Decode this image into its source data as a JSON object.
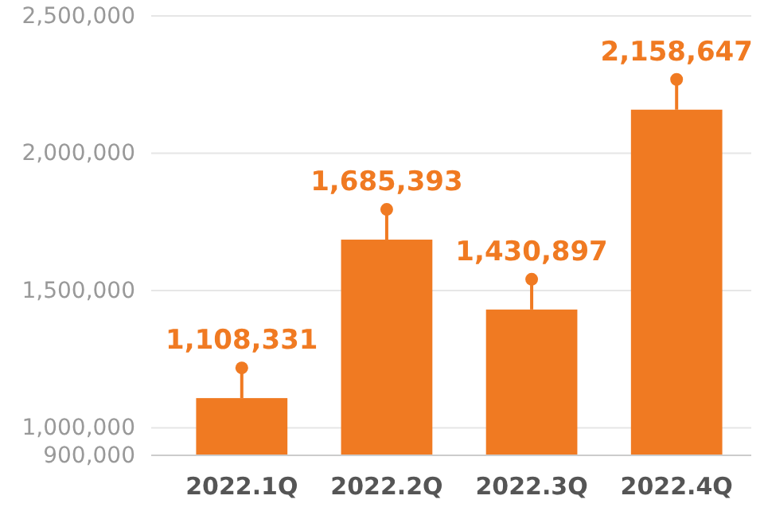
{
  "chart_data": {
    "type": "bar",
    "categories": [
      "2022.1Q",
      "2022.2Q",
      "2022.3Q",
      "2022.4Q"
    ],
    "values": [
      1108331,
      1685393,
      1430897,
      2158647
    ],
    "color": "#f07a22",
    "value_labels": [
      "1,108,331",
      "1,685,393",
      "1,430,897",
      "2,158,647"
    ],
    "ylim": [
      900000,
      2500000
    ],
    "yticks": [
      {
        "value": 900000,
        "label": "900,000"
      },
      {
        "value": 1000000,
        "label": "1,000,000"
      },
      {
        "value": 1500000,
        "label": "1,500,000"
      },
      {
        "value": 2000000,
        "label": "2,000,000"
      },
      {
        "value": 2500000,
        "label": "2,500,000"
      }
    ],
    "grid": "y"
  }
}
